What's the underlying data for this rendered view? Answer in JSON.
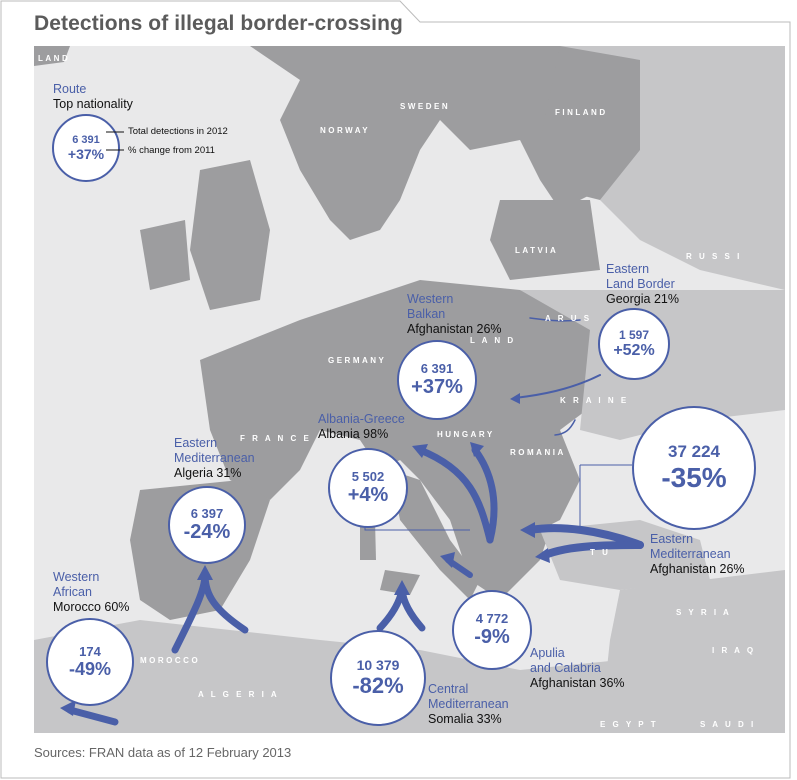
{
  "title": "Detections of illegal border-crossing",
  "source": "Sources: FRAN data as of 12 February 2013",
  "legend": {
    "route_label": "Route",
    "nationality_label": "Top nationality",
    "total": "6 391",
    "change": "+37%",
    "total_note": "Total detections in 2012",
    "change_note": "% change from 2011"
  },
  "countries": {
    "iceland": "LAND",
    "finland": "FINLAND",
    "sweden": "SWEDEN",
    "norway": "NORWAY",
    "latvia": "LATVIA",
    "russia": "R U S S I",
    "belarus": "A R U S",
    "poland": "L A N D",
    "germany": "GERMANY",
    "france": "F R A N C E",
    "hungary": "HUNGARY",
    "romania": "ROMANIA",
    "ukraine": "K R A I N E",
    "turkey": "T U",
    "syria": "S Y R I A",
    "iraq": "I R A Q",
    "morocco": "MOROCCO",
    "algeria": "A L G E R I A",
    "egypt": "E G Y P T",
    "saudi": "S A U D I"
  },
  "routes": [
    {
      "id": "western-african",
      "route": "Western African",
      "route_lines": [
        "Western",
        "African"
      ],
      "nationality": "Morocco 60%",
      "total": "174",
      "change": "-49%"
    },
    {
      "id": "eastern-med-west",
      "route": "Eastern Mediterranean",
      "route_lines": [
        "Eastern",
        "Mediterranean"
      ],
      "nationality": "Algeria 31%",
      "total": "6 397",
      "change": "-24%"
    },
    {
      "id": "albania-greece",
      "route": "Albania-Greece",
      "route_lines": [
        "Albania-Greece"
      ],
      "nationality": "Albania 98%",
      "total": "5 502",
      "change": "+4%"
    },
    {
      "id": "western-balkan",
      "route": "Western Balkan",
      "route_lines": [
        "Western",
        "Balkan"
      ],
      "nationality": "Afghanistan 26%",
      "total": "6 391",
      "change": "+37%"
    },
    {
      "id": "eastern-land-border",
      "route": "Eastern Land Border",
      "route_lines": [
        "Eastern",
        "Land Border"
      ],
      "nationality": "Georgia 21%",
      "total": "1 597",
      "change": "+52%"
    },
    {
      "id": "eastern-med-east",
      "route": "Eastern Mediterranean",
      "route_lines": [
        "Eastern",
        "Mediterranean"
      ],
      "nationality": "Afghanistan 26%",
      "total": "37 224",
      "change": "-35%"
    },
    {
      "id": "apulia-calabria",
      "route": "Apulia and Calabria",
      "route_lines": [
        "Apulia",
        "and Calabria"
      ],
      "nationality": "Afghanistan 36%",
      "total": "4 772",
      "change": "-9%"
    },
    {
      "id": "central-med",
      "route": "Central Mediterranean",
      "route_lines": [
        "Central",
        "Mediterranean"
      ],
      "nationality": "Somalia 33%",
      "total": "10 379",
      "change": "-82%"
    }
  ],
  "colors": {
    "land": "#9d9d9f",
    "outer_land": "#c6c6c8",
    "sea": "#e9e9ea",
    "accent": "#4a5fa8"
  }
}
